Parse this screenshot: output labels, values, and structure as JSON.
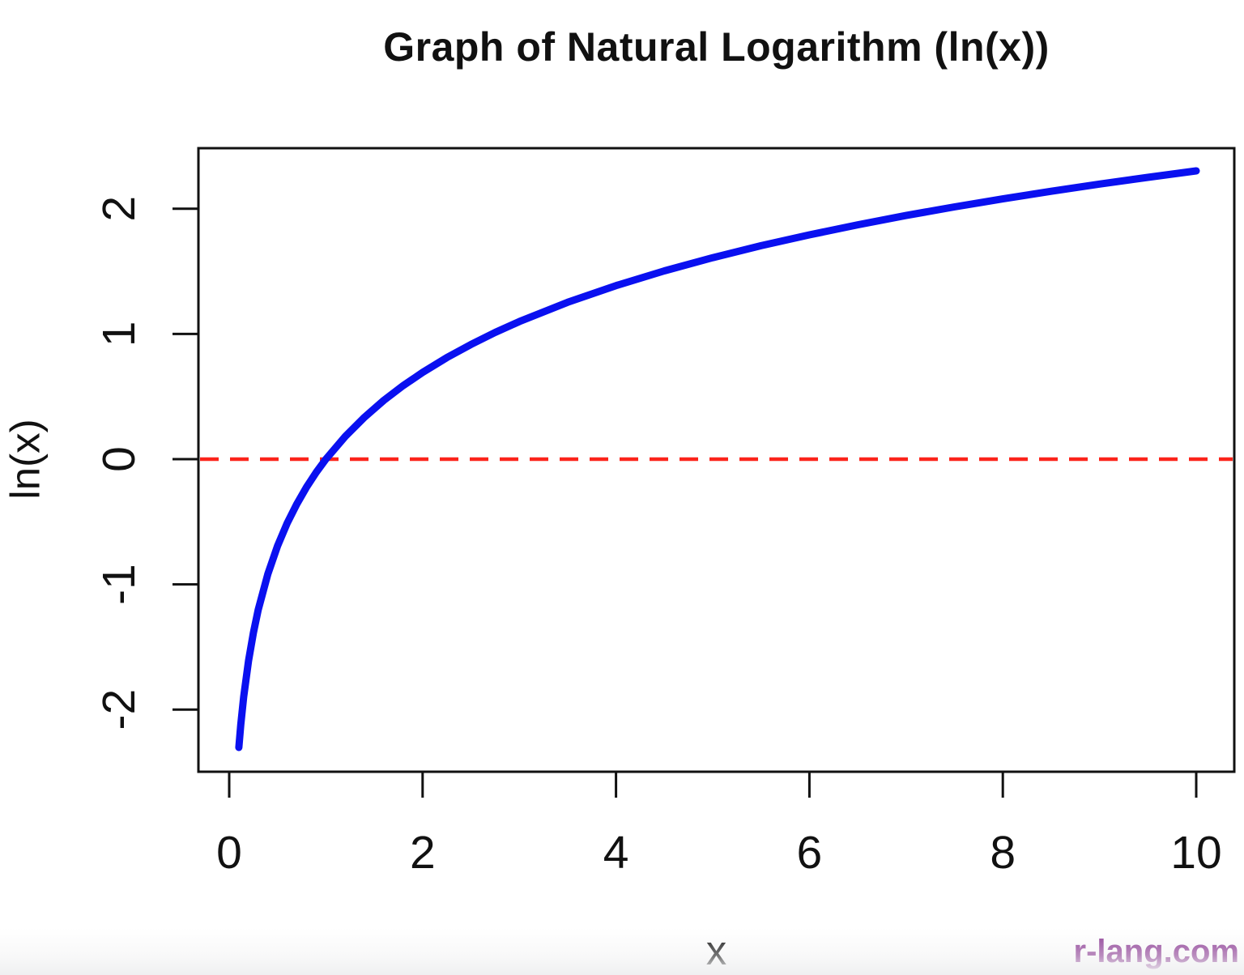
{
  "page": {
    "background": "#ffffff"
  },
  "chart_data": {
    "type": "line",
    "title": "Graph of Natural Logarithm (ln(x))",
    "xlabel": "x",
    "ylabel": "ln(x)",
    "xlim": [
      0.1,
      10
    ],
    "ylim": [
      -2.5,
      2.5
    ],
    "x_ticks": [
      0,
      2,
      4,
      6,
      8,
      10
    ],
    "y_ticks": [
      2,
      1,
      0,
      -1,
      -2
    ],
    "grid": false,
    "legend_position": "none",
    "axis_color": "#111111",
    "text_color": "#111111",
    "series": [
      {
        "name": "ln(x)",
        "color": "#0a10f0",
        "line_width": 9,
        "style": "solid",
        "x": [
          0.1,
          0.12,
          0.15,
          0.2,
          0.25,
          0.3,
          0.4,
          0.5,
          0.6,
          0.7,
          0.8,
          0.9,
          1.0,
          1.2,
          1.4,
          1.6,
          1.8,
          2.0,
          2.25,
          2.5,
          2.75,
          3.0,
          3.5,
          4.0,
          4.5,
          5.0,
          5.5,
          6.0,
          6.5,
          7.0,
          7.5,
          8.0,
          8.5,
          9.0,
          9.5,
          10.0
        ],
        "y": [
          -2.303,
          -2.12,
          -1.897,
          -1.609,
          -1.386,
          -1.204,
          -0.916,
          -0.693,
          -0.511,
          -0.357,
          -0.223,
          -0.105,
          0.0,
          0.182,
          0.336,
          0.47,
          0.588,
          0.693,
          0.811,
          0.916,
          1.012,
          1.099,
          1.253,
          1.386,
          1.504,
          1.609,
          1.705,
          1.792,
          1.872,
          1.946,
          2.015,
          2.079,
          2.14,
          2.197,
          2.251,
          2.303
        ]
      }
    ],
    "reference_lines": [
      {
        "y": 0,
        "color": "#fb241b",
        "style": "dashed",
        "width": 4.5
      }
    ]
  },
  "watermark": {
    "text": "r-lang.com",
    "color": "#8e3d96"
  }
}
